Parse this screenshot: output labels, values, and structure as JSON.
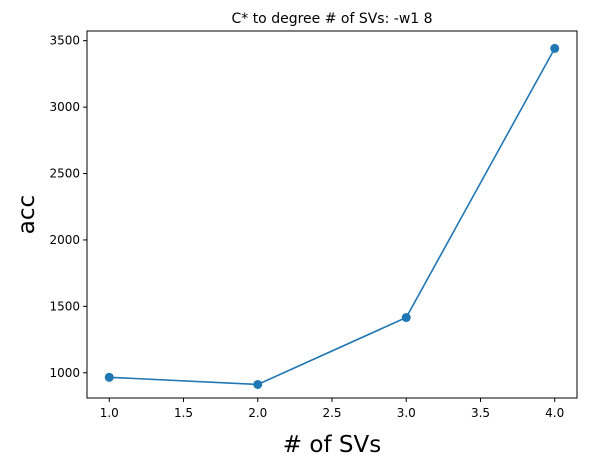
{
  "chart_data": {
    "type": "line",
    "title": "C* to degree # of SVs: -w1 8",
    "xlabel": "# of SVs",
    "ylabel": "acc",
    "x": [
      1.0,
      2.0,
      3.0,
      4.0
    ],
    "series": [
      {
        "values": [
          966,
          912,
          1416,
          3442
        ],
        "color": "#1f77b4",
        "marker": "circle"
      }
    ],
    "xlim": [
      0.85,
      4.15
    ],
    "ylim": [
      810,
      3573
    ],
    "xticks": [
      1.0,
      1.5,
      2.0,
      2.5,
      3.0,
      3.5,
      4.0
    ],
    "xtick_labels": [
      "1.0",
      "1.5",
      "2.0",
      "2.5",
      "3.0",
      "3.5",
      "4.0"
    ],
    "yticks": [
      1000,
      1500,
      2000,
      2500,
      3000,
      3500
    ],
    "ytick_labels": [
      "1000",
      "1500",
      "2000",
      "2500",
      "3000",
      "3500"
    ],
    "grid": false,
    "legend": false
  }
}
